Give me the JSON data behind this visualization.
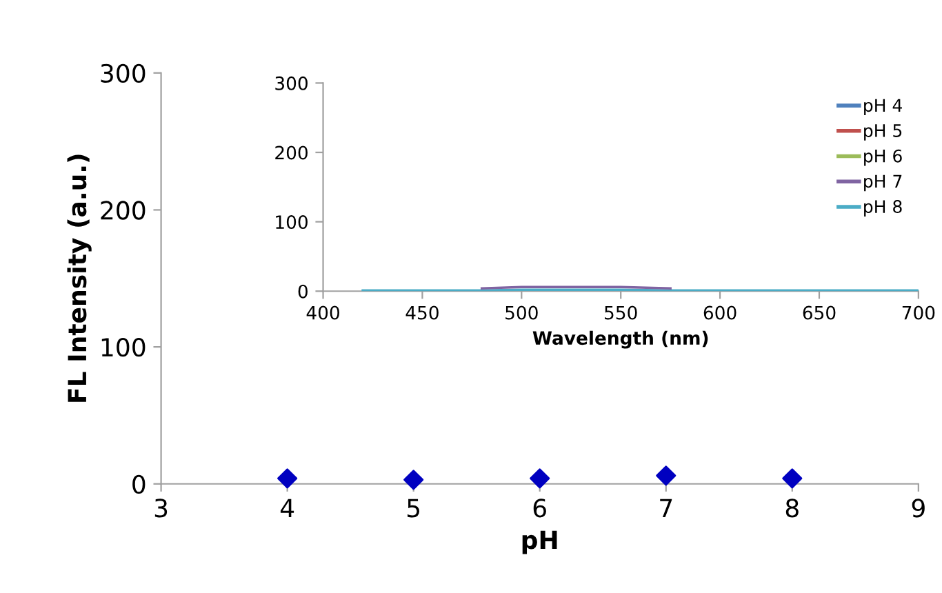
{
  "chart_data": [
    {
      "type": "scatter",
      "xlabel": "pH",
      "ylabel": "FL Intensity (a.u.)",
      "xlim": [
        3,
        9
      ],
      "xticks": [
        3,
        4,
        5,
        6,
        7,
        8,
        9
      ],
      "ylim": [
        0,
        300
      ],
      "yticks": [
        0,
        100,
        200,
        300
      ],
      "marker": "diamond",
      "legend": false,
      "x": [
        4,
        5,
        6,
        7,
        8
      ],
      "series": [
        {
          "color": "#0000c0",
          "values": [
            4,
            3,
            4,
            6,
            4
          ]
        }
      ]
    },
    {
      "type": "line",
      "xlabel": "Wavelength (nm)",
      "xlim": [
        400,
        700
      ],
      "xticks": [
        400,
        450,
        500,
        550,
        600,
        650,
        700
      ],
      "ylim": [
        0,
        300
      ],
      "yticks": [
        0,
        100,
        200,
        300
      ],
      "legend": "top right",
      "line_style": "solid",
      "x": [
        420,
        450,
        480,
        500,
        520,
        550,
        575,
        600,
        650,
        700
      ],
      "series": [
        {
          "name": "pH 4",
          "color": "#4f81bd",
          "values": [
            null,
            null,
            null,
            null,
            null,
            null,
            null,
            null,
            null,
            null
          ]
        },
        {
          "name": "pH 5",
          "color": "#c0504d",
          "values": [
            null,
            null,
            null,
            null,
            null,
            null,
            null,
            null,
            null,
            null
          ]
        },
        {
          "name": "pH 6",
          "color": "#9bbb59",
          "values": [
            null,
            null,
            null,
            null,
            null,
            null,
            null,
            null,
            null,
            null
          ]
        },
        {
          "name": "pH 7",
          "color": "#8064a2",
          "values": [
            null,
            null,
            4,
            6,
            6,
            6,
            4,
            null,
            null,
            null
          ]
        },
        {
          "name": "pH 8",
          "color": "#4bacc6",
          "values": [
            1,
            1,
            1,
            2,
            2,
            2,
            1,
            1,
            1,
            1
          ]
        }
      ]
    }
  ]
}
